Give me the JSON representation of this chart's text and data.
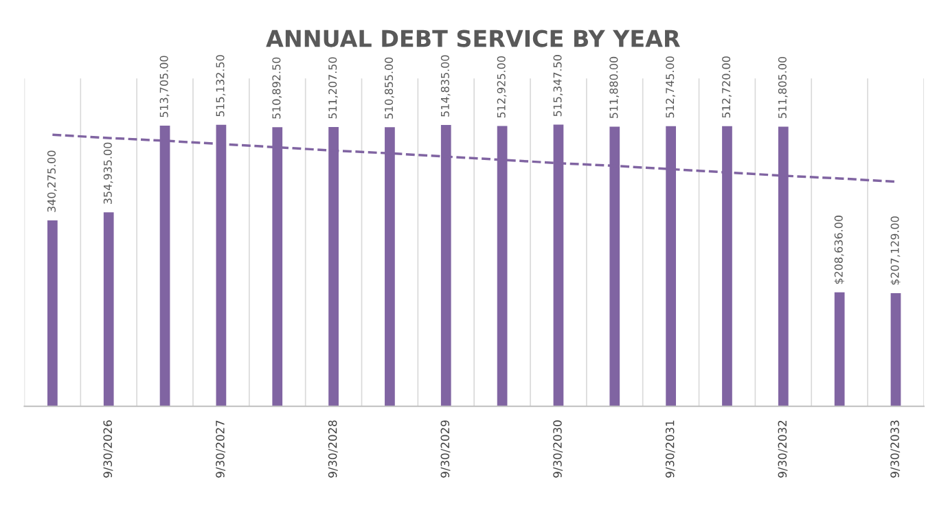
{
  "chart_data": {
    "type": "bar",
    "title": "ANNUAL DEBT SERVICE BY YEAR",
    "categories": [
      null,
      "9/30/2026",
      null,
      "9/30/2027",
      null,
      "9/30/2028",
      null,
      "9/30/2029",
      null,
      "9/30/2030",
      null,
      "9/30/2031",
      null,
      "9/30/2032",
      null,
      "9/30/2033"
    ],
    "series": [
      {
        "color": "#8064a2",
        "values": [
          340275,
          354935,
          513705,
          515132.5,
          510892.5,
          511207.5,
          510855,
          514835,
          512925,
          515347.5,
          511880,
          512745,
          512720,
          511805,
          208636,
          207129
        ],
        "value_labels": [
          "340,275.00",
          "354,935.00",
          "513,705.00",
          "515,132.50",
          "510,892.50",
          "511,207.50",
          "510,855.00",
          "514,835.00",
          "512,925.00",
          "515,347.50",
          "511,880.00",
          "512,745.00",
          "512,720.00",
          "511,805.00",
          "$208,636.00",
          "$207,129.00"
        ]
      },
      {
        "type": "line",
        "color": "#8064a2",
        "line_style": "dashed",
        "values": [
          497000,
          491000,
          486000,
          480000,
          474000,
          468000,
          463000,
          457000,
          451000,
          445000,
          440000,
          434000,
          428000,
          422000,
          417000,
          411000
        ]
      }
    ],
    "ylim": [
      0,
      600000
    ],
    "tick_labels": "x",
    "grid": "x",
    "legend": false
  }
}
